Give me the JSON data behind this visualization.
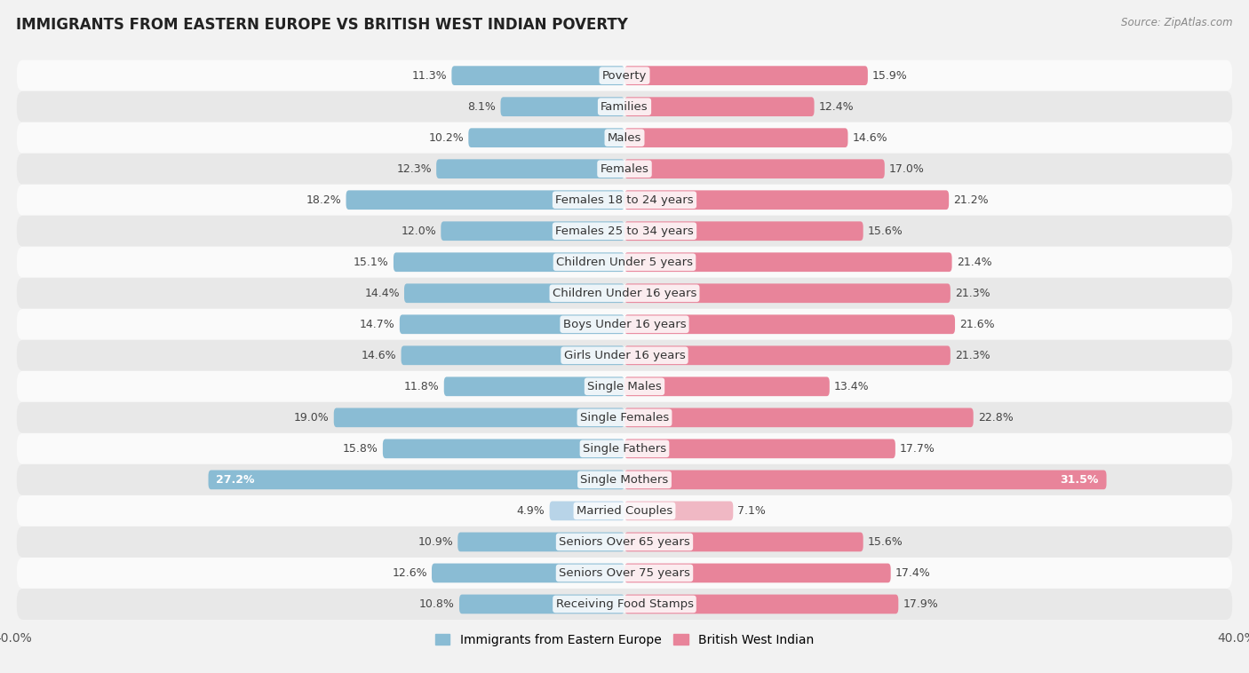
{
  "title": "IMMIGRANTS FROM EASTERN EUROPE VS BRITISH WEST INDIAN POVERTY",
  "source": "Source: ZipAtlas.com",
  "categories": [
    "Poverty",
    "Families",
    "Males",
    "Females",
    "Females 18 to 24 years",
    "Females 25 to 34 years",
    "Children Under 5 years",
    "Children Under 16 years",
    "Boys Under 16 years",
    "Girls Under 16 years",
    "Single Males",
    "Single Females",
    "Single Fathers",
    "Single Mothers",
    "Married Couples",
    "Seniors Over 65 years",
    "Seniors Over 75 years",
    "Receiving Food Stamps"
  ],
  "eastern_europe": [
    11.3,
    8.1,
    10.2,
    12.3,
    18.2,
    12.0,
    15.1,
    14.4,
    14.7,
    14.6,
    11.8,
    19.0,
    15.8,
    27.2,
    4.9,
    10.9,
    12.6,
    10.8
  ],
  "british_west_indian": [
    15.9,
    12.4,
    14.6,
    17.0,
    21.2,
    15.6,
    21.4,
    21.3,
    21.6,
    21.3,
    13.4,
    22.8,
    17.7,
    31.5,
    7.1,
    15.6,
    17.4,
    17.9
  ],
  "color_eastern": "#8abcd4",
  "color_british": "#e8849a",
  "color_married_eastern": "#b8d4e8",
  "color_married_british": "#f0b8c4",
  "background_color": "#f2f2f2",
  "row_color_light": "#fafafa",
  "row_color_dark": "#e8e8e8",
  "axis_limit": 40.0,
  "bar_height": 0.62,
  "label_fontsize": 9.5,
  "title_fontsize": 12,
  "value_fontsize": 9.0
}
